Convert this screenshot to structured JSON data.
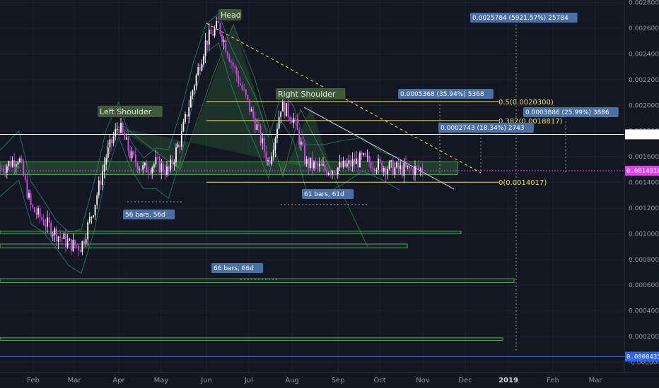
{
  "chart_data": {
    "type": "candlestick",
    "x_axis": {
      "months": [
        "Feb",
        "Mar",
        "Apr",
        "May",
        "Jun",
        "Jul",
        "Aug",
        "Sep",
        "Oct",
        "Nov",
        "Dec",
        "2019",
        "Feb",
        "Mar"
      ]
    },
    "y_axis": {
      "range": [
        -8e-05,
        0.00282
      ],
      "ticks": [
        "0.0028000",
        "0.0026000",
        "0.0024000",
        "0.0022000",
        "0.0020000",
        "0.0018000",
        "0.0016000",
        "0.0014000",
        "0.0012000",
        "0.0010000",
        "0.0008000",
        "0.0006000",
        "0.0004000",
        "0.0002000",
        "-0.0000000"
      ]
    },
    "price_badges": [
      {
        "text": "0.0017740",
        "value": 0.001774,
        "color": "#ffffff",
        "text_color": "#131722"
      },
      {
        "text": "0.0014910",
        "value": 0.001491,
        "color": "#e040fb",
        "text_color": "#ffffff"
      },
      {
        "text": "0.0000435",
        "value": 4.35e-05,
        "color": "#2962ff",
        "text_color": "#ffffff"
      }
    ],
    "annotations": {
      "head": "Head",
      "left_shoulder": "Left Shoulder",
      "right_shoulder": "Right Shoulder"
    },
    "fib_levels": [
      {
        "text": "0.5(0.0020300)",
        "value": 0.00203
      },
      {
        "text": "0.382(0.0018817)",
        "value": 0.0018817
      },
      {
        "text": "0(0.0014017)",
        "value": 0.0014017
      }
    ],
    "measurements": [
      {
        "text": "0.0025784 (5921.57%) 25784"
      },
      {
        "text": "0.0005368 (35.94%) 5368"
      },
      {
        "text": "0.0003886 (25.99%) 3886"
      },
      {
        "text": "0.0002743 (18.34%) 2743"
      },
      {
        "text": "56 bars, 56d"
      },
      {
        "text": "61 bars, 61d"
      },
      {
        "text": "66 bars, 66d"
      }
    ],
    "green_zones": [
      {
        "from": 0.00146,
        "to": 0.00156
      },
      {
        "from": 0.001,
        "to": 0.00102
      },
      {
        "from": 0.00089,
        "to": 0.00092
      },
      {
        "from": 0.00062,
        "to": 0.00065
      },
      {
        "from": 0.00017,
        "to": 0.00019
      }
    ],
    "horizontal_lines": [
      {
        "value": 0.001774,
        "color": "#ffffff"
      },
      {
        "value": 0.001491,
        "color": "#e040fb"
      },
      {
        "value": 4.35e-05,
        "color": "#2962ff"
      }
    ],
    "price_path": [
      [
        0.0,
        0.0015
      ],
      [
        0.03,
        0.0016
      ],
      [
        0.05,
        0.0012
      ],
      [
        0.07,
        0.0011
      ],
      [
        0.09,
        0.001
      ],
      [
        0.11,
        0.00092
      ],
      [
        0.13,
        0.0009
      ],
      [
        0.15,
        0.0012
      ],
      [
        0.17,
        0.0016
      ],
      [
        0.19,
        0.00185
      ],
      [
        0.21,
        0.0016
      ],
      [
        0.23,
        0.0015
      ],
      [
        0.25,
        0.00155
      ],
      [
        0.27,
        0.00148
      ],
      [
        0.29,
        0.00175
      ],
      [
        0.31,
        0.00215
      ],
      [
        0.33,
        0.0025
      ],
      [
        0.35,
        0.00262
      ],
      [
        0.37,
        0.00235
      ],
      [
        0.39,
        0.0021
      ],
      [
        0.41,
        0.00185
      ],
      [
        0.43,
        0.00155
      ],
      [
        0.44,
        0.00175
      ],
      [
        0.45,
        0.002
      ],
      [
        0.47,
        0.0019
      ],
      [
        0.49,
        0.00155
      ],
      [
        0.52,
        0.0015
      ],
      [
        0.55,
        0.00152
      ],
      [
        0.58,
        0.00158
      ],
      [
        0.61,
        0.00153
      ],
      [
        0.64,
        0.0015
      ]
    ]
  }
}
